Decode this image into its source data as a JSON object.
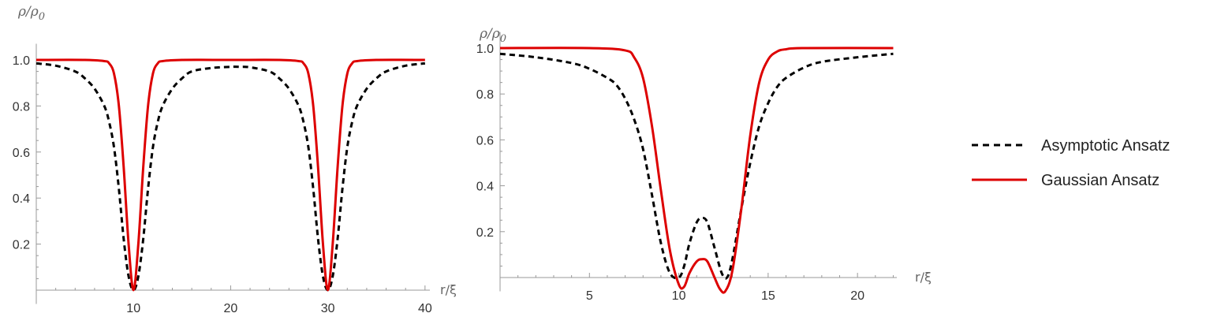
{
  "chart_data": [
    {
      "type": "line",
      "title": "",
      "ylabel": "ρ/ρ0",
      "xlabel": "r/ξ",
      "xlim": [
        0,
        40.5
      ],
      "ylim": [
        -0.06,
        1.07
      ],
      "xticks": [
        10,
        20,
        30,
        40
      ],
      "yticks": [
        0.2,
        0.4,
        0.6,
        0.8,
        1.0
      ],
      "ytick_labels": [
        "0.2",
        "0.4",
        "0.6",
        "0.8",
        "1.0"
      ],
      "grid": false,
      "series": [
        {
          "name": "Asymptotic Ansatz",
          "style": "dashed",
          "color": "#000000",
          "x": [
            0,
            2,
            4,
            5,
            6,
            7,
            7.5,
            8,
            8.5,
            9,
            9.5,
            10,
            10.5,
            11,
            11.5,
            12,
            12.5,
            13,
            14,
            15,
            16,
            18,
            20,
            21,
            22,
            24,
            25,
            26,
            27,
            27.5,
            28,
            28.5,
            29,
            29.5,
            30,
            30.5,
            31,
            31.5,
            32,
            32.5,
            33,
            34,
            35,
            36,
            38,
            40
          ],
          "y": [
            0.985,
            0.975,
            0.95,
            0.92,
            0.875,
            0.8,
            0.73,
            0.62,
            0.44,
            0.22,
            0.06,
            0.0,
            0.06,
            0.22,
            0.44,
            0.62,
            0.73,
            0.8,
            0.875,
            0.92,
            0.95,
            0.965,
            0.97,
            0.97,
            0.968,
            0.95,
            0.92,
            0.875,
            0.8,
            0.73,
            0.62,
            0.44,
            0.22,
            0.06,
            0.0,
            0.06,
            0.22,
            0.44,
            0.62,
            0.73,
            0.8,
            0.875,
            0.92,
            0.95,
            0.975,
            0.985
          ]
        },
        {
          "name": "Gaussian Ansatz",
          "style": "solid",
          "color": "#dd0000",
          "x": [
            0,
            5,
            7,
            7.5,
            8,
            8.5,
            9,
            9.5,
            10,
            10.5,
            11,
            11.5,
            12,
            12.5,
            13,
            15,
            20,
            25,
            27,
            27.5,
            28,
            28.5,
            29,
            29.5,
            30,
            30.5,
            31,
            31.5,
            32,
            32.5,
            33,
            35,
            40
          ],
          "y": [
            1.0,
            1.0,
            0.995,
            0.985,
            0.94,
            0.8,
            0.53,
            0.2,
            0.0,
            0.2,
            0.53,
            0.8,
            0.94,
            0.985,
            0.995,
            1.0,
            1.0,
            1.0,
            0.995,
            0.985,
            0.94,
            0.8,
            0.53,
            0.2,
            0.0,
            0.2,
            0.53,
            0.8,
            0.94,
            0.985,
            0.995,
            1.0,
            1.0
          ]
        }
      ]
    },
    {
      "type": "line",
      "title": "",
      "ylabel": "ρ/ρ0",
      "xlabel": "r/ξ",
      "xlim": [
        0,
        22.2
      ],
      "ylim": [
        -0.06,
        1.07
      ],
      "xticks": [
        5,
        10,
        15,
        20
      ],
      "yticks": [
        0.2,
        0.4,
        0.6,
        0.8,
        1.0
      ],
      "ytick_labels": [
        "0.2",
        "0.4",
        "0.6",
        "0.8",
        "1.0"
      ],
      "grid": false,
      "series": [
        {
          "name": "Asymptotic Ansatz",
          "style": "dashed",
          "color": "#000000",
          "x": [
            0,
            2,
            4,
            5,
            6,
            6.5,
            7,
            7.5,
            8,
            8.5,
            9,
            9.5,
            10,
            10.3,
            10.6,
            11,
            11.3,
            11.6,
            12,
            12.4,
            12.7,
            13,
            13.5,
            14,
            14.5,
            15,
            15.5,
            16,
            17,
            18,
            20,
            22
          ],
          "y": [
            0.975,
            0.96,
            0.935,
            0.91,
            0.87,
            0.84,
            0.78,
            0.69,
            0.56,
            0.36,
            0.15,
            0.02,
            0.0,
            0.05,
            0.15,
            0.24,
            0.26,
            0.24,
            0.13,
            0.02,
            0.0,
            0.08,
            0.3,
            0.5,
            0.66,
            0.76,
            0.83,
            0.87,
            0.915,
            0.94,
            0.96,
            0.975
          ]
        },
        {
          "name": "Gaussian Ansatz",
          "style": "solid",
          "color": "#dd0000",
          "x": [
            0,
            5,
            7,
            7.5,
            8,
            8.5,
            9,
            9.5,
            10,
            10.3,
            10.6,
            11,
            11.3,
            11.6,
            12,
            12.3,
            12.6,
            13,
            13.5,
            14,
            14.5,
            15,
            15.5,
            16,
            17,
            22
          ],
          "y": [
            1.0,
            1.0,
            0.99,
            0.96,
            0.87,
            0.66,
            0.38,
            0.12,
            -0.03,
            -0.04,
            0.02,
            0.07,
            0.08,
            0.07,
            0.0,
            -0.05,
            -0.06,
            0.03,
            0.3,
            0.62,
            0.85,
            0.95,
            0.985,
            0.995,
            1.0,
            1.0
          ]
        }
      ]
    }
  ],
  "legend": {
    "placement": "right",
    "items": [
      {
        "label": "Asymptotic Ansatz",
        "style": "dashed",
        "color": "#000000"
      },
      {
        "label": "Gaussian Ansatz",
        "style": "solid",
        "color": "#dd0000"
      }
    ]
  }
}
